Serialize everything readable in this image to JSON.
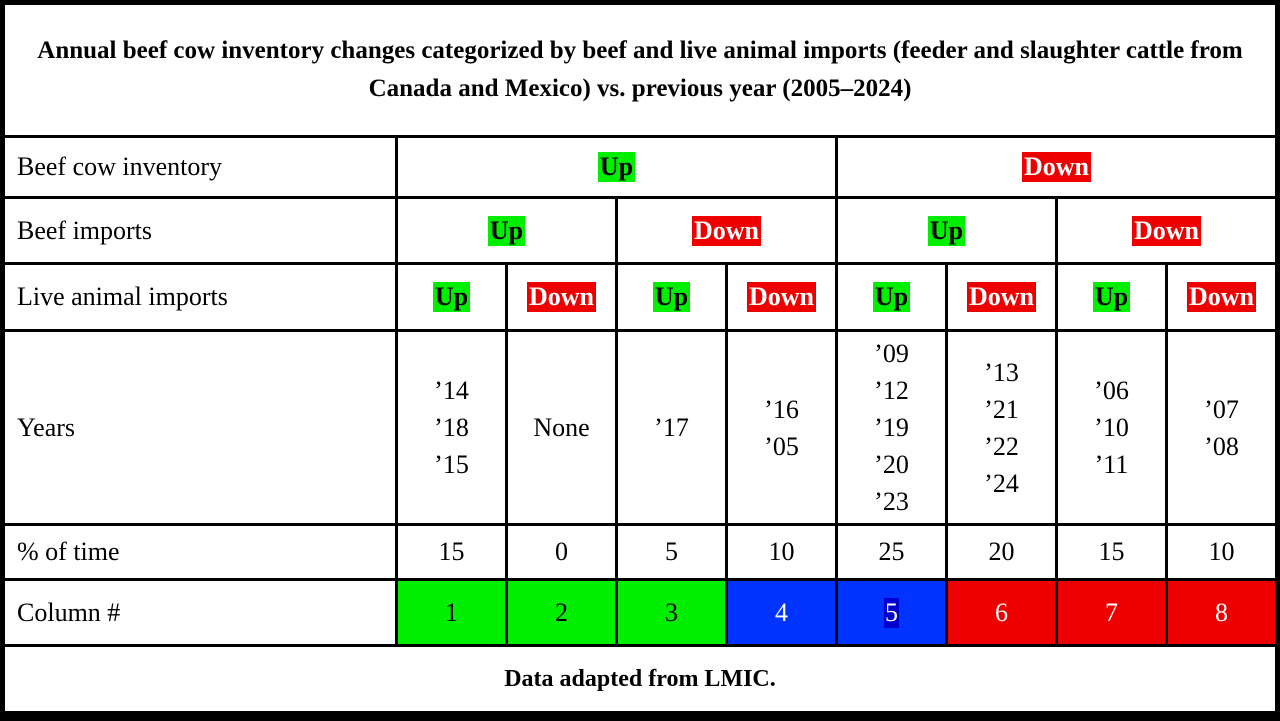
{
  "title": "Annual beef cow inventory changes categorized by beef and live animal imports (feeder and slaughter cattle from Canada and Mexico) vs. previous year (2005–2024)",
  "rows": {
    "beef_cow_inventory": {
      "label": "Beef cow inventory",
      "values": [
        "Up",
        "Down"
      ]
    },
    "beef_imports": {
      "label": "Beef imports",
      "values": [
        "Up",
        "Down",
        "Up",
        "Down"
      ]
    },
    "live_animal_imports": {
      "label": "Live animal imports",
      "values": [
        "Up",
        "Down",
        "Up",
        "Down",
        "Up",
        "Down",
        "Up",
        "Down"
      ]
    },
    "years": {
      "label": "Years",
      "values": [
        [
          "’14",
          "’18",
          "’15"
        ],
        [
          "None"
        ],
        [
          "’17"
        ],
        [
          "’16",
          "’05"
        ],
        [
          "’09",
          "’12",
          "’19",
          "’20",
          "’23"
        ],
        [
          "’13",
          "’21",
          "’22",
          "’24"
        ],
        [
          "’06",
          "’10",
          "’11"
        ],
        [
          "’07",
          "’08"
        ]
      ]
    },
    "pct_time": {
      "label": "% of time",
      "values": [
        "15",
        "0",
        "5",
        "10",
        "25",
        "20",
        "15",
        "10"
      ]
    },
    "column_num": {
      "label": "Column #",
      "values": [
        "1",
        "2",
        "3",
        "4",
        "5",
        "6",
        "7",
        "8"
      ],
      "colors": [
        "#00ee00",
        "#00ee00",
        "#00ee00",
        "#0033ff",
        "#0033ff",
        "#ee0000",
        "#ee0000",
        "#ee0000"
      ]
    }
  },
  "colors": {
    "up": "#00ee00",
    "down": "#ee0000"
  },
  "footer": "Data adapted from LMIC."
}
